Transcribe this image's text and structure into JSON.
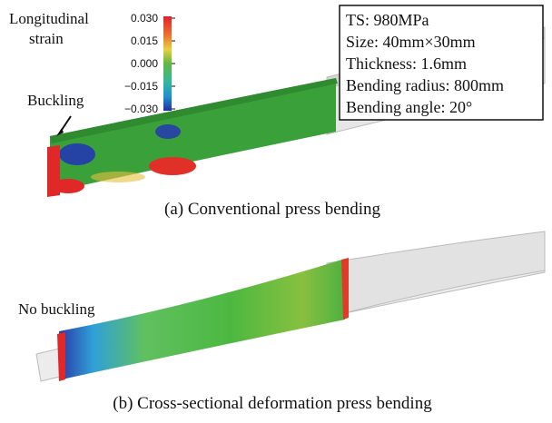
{
  "colorbar": {
    "title": [
      "Longitudinal",
      "strain"
    ],
    "lim": [
      -0.03,
      0.03
    ],
    "ticks": [
      {
        "value": 0.03,
        "label": "0.030"
      },
      {
        "value": 0.015,
        "label": "0.015"
      },
      {
        "value": 0,
        "label": "0.000"
      },
      {
        "value": -0.015,
        "label": "−0.015"
      },
      {
        "value": -0.03,
        "label": "−0.030"
      }
    ]
  },
  "spec_box": {
    "lines": [
      "TS: 980MPa",
      "Size: 40mm×30mm",
      "Thickness: 1.6mm",
      "Bending radius: 800mm",
      "Bending angle: 20°"
    ]
  },
  "panel_a": {
    "annotation": "Buckling",
    "caption": "(a) Conventional press bending"
  },
  "panel_b": {
    "annotation": "No buckling",
    "caption": "(b) Cross-sectional deformation press bending"
  }
}
